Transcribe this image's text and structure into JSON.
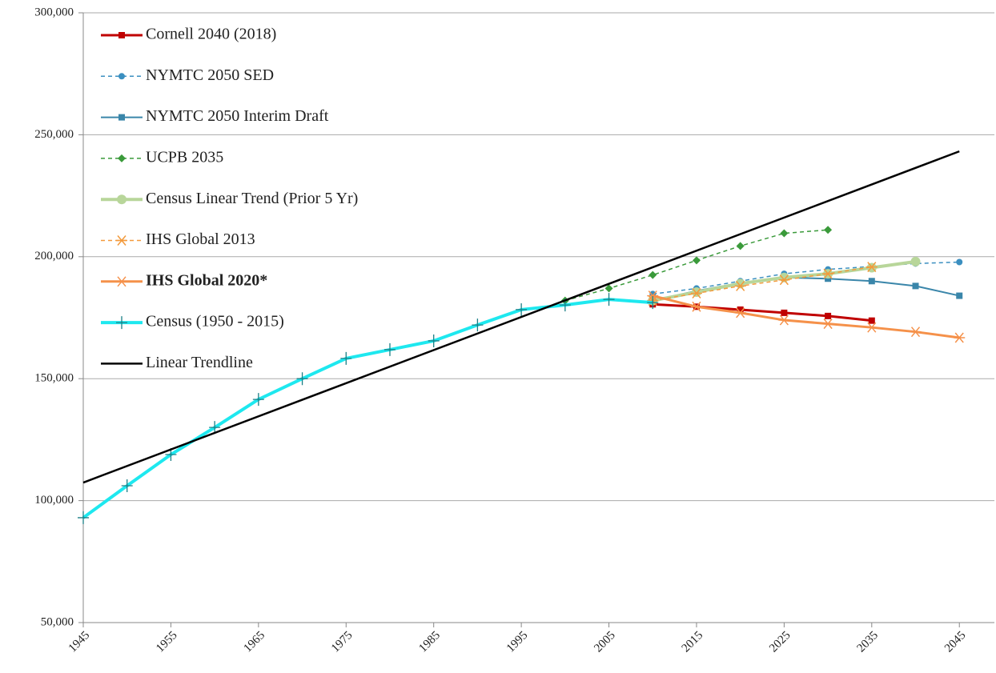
{
  "chart_data": {
    "type": "line",
    "xlim": [
      1945,
      2049
    ],
    "xticks": [
      1945,
      1955,
      1965,
      1975,
      1985,
      1995,
      2005,
      2015,
      2025,
      2035,
      2045
    ],
    "ylim": [
      50000,
      300000
    ],
    "yticks": [
      {
        "value": 50000,
        "label": "50,000"
      },
      {
        "value": 100000,
        "label": "100,000"
      },
      {
        "value": 150000,
        "label": "150,000"
      },
      {
        "value": 200000,
        "label": "200,000"
      },
      {
        "value": 250000,
        "label": "250,000"
      },
      {
        "value": 300000,
        "label": "300,000"
      }
    ],
    "grid": true,
    "legend": "upper left",
    "series": [
      {
        "name": "Cornell 2040 (2018)",
        "color": "#c00000",
        "dashed": false,
        "marker": "square",
        "width": 3,
        "x": [
          2010,
          2015,
          2020,
          2025,
          2030,
          2035
        ],
        "values": [
          180500,
          179500,
          178300,
          177000,
          175700,
          173800
        ]
      },
      {
        "name": "NYMTC 2050 SED",
        "color": "#3b8fc0",
        "dashed": true,
        "marker": "circle",
        "width": 1.5,
        "x": [
          2010,
          2015,
          2020,
          2025,
          2030,
          2035,
          2040,
          2045
        ],
        "values": [
          184700,
          187000,
          190000,
          193000,
          194800,
          196000,
          197200,
          197800
        ]
      },
      {
        "name": "NYMTC 2050 Interim Draft",
        "color": "#3a86aa",
        "dashed": false,
        "marker": "square",
        "width": 2,
        "x": [
          2010,
          2015,
          2020,
          2025,
          2030,
          2035,
          2040,
          2045
        ],
        "values": [
          182000,
          186000,
          189200,
          191500,
          191000,
          190000,
          188000,
          184000
        ]
      },
      {
        "name": "UCPB 2035",
        "color": "#3a9a3a",
        "dashed": true,
        "marker": "diamond",
        "width": 1.5,
        "x": [
          2000,
          2005,
          2010,
          2015,
          2020,
          2025,
          2030
        ],
        "values": [
          182000,
          187000,
          192500,
          198500,
          204400,
          209600,
          211000
        ]
      },
      {
        "name": "Census Linear Trend (Prior 5 Yr)",
        "color": "#b8d69a",
        "dashed": false,
        "marker": "circle",
        "width": 4,
        "x": [
          2010,
          2015,
          2020,
          2025,
          2030,
          2035,
          2040
        ],
        "values": [
          182000,
          185500,
          189000,
          191500,
          193000,
          195500,
          198000
        ]
      },
      {
        "name": "IHS Global 2013",
        "color": "#f39a3c",
        "dashed": true,
        "marker": "asterisk",
        "width": 1.5,
        "x": [
          2010,
          2015,
          2020,
          2025,
          2030,
          2035
        ],
        "values": [
          182000,
          185000,
          188000,
          190500,
          193000,
          195800
        ]
      },
      {
        "name": "IHS Global 2020*",
        "color": "#f5914a",
        "dashed": false,
        "marker": "asterisk",
        "width": 3,
        "bold": true,
        "x": [
          2010,
          2015,
          2020,
          2025,
          2030,
          2035,
          2040,
          2045
        ],
        "values": [
          184000,
          179500,
          177000,
          174000,
          172500,
          171000,
          169200,
          166800
        ]
      },
      {
        "name": "Census (1950 - 2015)",
        "color": "#1ee8ef",
        "dashed": false,
        "marker": "plus",
        "width": 4,
        "x": [
          1945,
          1950,
          1955,
          1960,
          1965,
          1970,
          1975,
          1980,
          1985,
          1990,
          1995,
          2000,
          2005,
          2010
        ],
        "values": [
          93000,
          106100,
          118900,
          130000,
          141500,
          150000,
          158300,
          161900,
          165500,
          172000,
          178300,
          180200,
          182500,
          181200
        ]
      },
      {
        "name": "Linear Trendline",
        "color": "#000000",
        "dashed": false,
        "marker": "none",
        "width": 2.5,
        "x": [
          1945,
          2045
        ],
        "values": [
          107400,
          243200
        ]
      }
    ]
  }
}
